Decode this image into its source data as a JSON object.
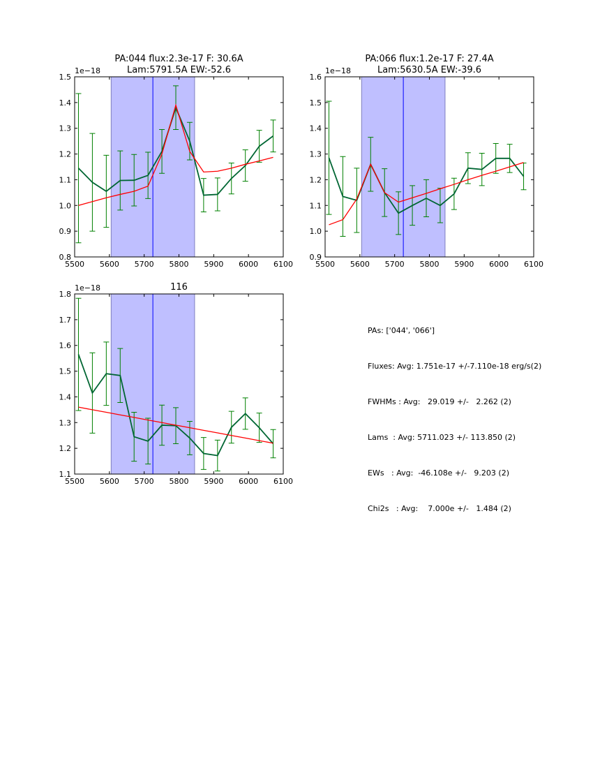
{
  "chart_data": [
    {
      "type": "line",
      "title": [
        "PA:044 flux:2.3e-17 F: 30.6A",
        "Lam:5791.5A EW:-52.6"
      ],
      "offset_label": "1e−18",
      "xlim": [
        5500,
        6100
      ],
      "ylim": [
        0.8,
        1.5
      ],
      "xticks": [
        5500,
        5600,
        5700,
        5800,
        5900,
        6000,
        6100
      ],
      "yticks": [
        0.8,
        0.9,
        1.0,
        1.1,
        1.2,
        1.3,
        1.4,
        1.5
      ],
      "yticklabels": [
        "0.8",
        "0.9",
        "1.0",
        "1.1",
        "1.2",
        "1.3",
        "1.4",
        "1.5"
      ],
      "x": [
        5511,
        5551,
        5591,
        5631,
        5671,
        5711,
        5751,
        5791,
        5831,
        5871,
        5911,
        5951,
        5991,
        6031,
        6071
      ],
      "series": [
        {
          "name": "data",
          "color": "#006633",
          "values": [
            1.145,
            1.09,
            1.055,
            1.097,
            1.098,
            1.117,
            1.21,
            1.38,
            1.25,
            1.04,
            1.043,
            1.105,
            1.155,
            1.23,
            1.27
          ],
          "errors": [
            0.29,
            0.19,
            0.14,
            0.115,
            0.1,
            0.09,
            0.085,
            0.085,
            0.073,
            0.065,
            0.064,
            0.06,
            0.061,
            0.062,
            0.062
          ]
        },
        {
          "name": "fit",
          "color": "#ff0000",
          "values": [
            1.0,
            1.015,
            1.03,
            1.043,
            1.055,
            1.075,
            1.2,
            1.39,
            1.21,
            1.13,
            1.133,
            1.145,
            1.16,
            1.173,
            1.187
          ]
        }
      ],
      "vline": 5725,
      "span": [
        5605,
        5845
      ]
    },
    {
      "type": "line",
      "title": [
        "PA:066 flux:1.2e-17 F: 27.4A",
        "Lam:5630.5A EW:-39.6"
      ],
      "offset_label": "1e−18",
      "xlim": [
        5500,
        6100
      ],
      "ylim": [
        0.9,
        1.6
      ],
      "xticks": [
        5500,
        5600,
        5700,
        5800,
        5900,
        6000,
        6100
      ],
      "yticks": [
        0.9,
        1.0,
        1.1,
        1.2,
        1.3,
        1.4,
        1.5,
        1.6
      ],
      "yticklabels": [
        "0.9",
        "1.0",
        "1.1",
        "1.2",
        "1.3",
        "1.4",
        "1.5",
        "1.6"
      ],
      "x": [
        5511,
        5551,
        5591,
        5631,
        5671,
        5711,
        5751,
        5791,
        5831,
        5871,
        5911,
        5951,
        5991,
        6031,
        6071
      ],
      "series": [
        {
          "name": "data",
          "color": "#006633",
          "values": [
            1.285,
            1.135,
            1.12,
            1.26,
            1.15,
            1.07,
            1.1,
            1.128,
            1.1,
            1.145,
            1.245,
            1.24,
            1.283,
            1.283,
            1.213
          ],
          "errors": [
            0.22,
            0.155,
            0.125,
            0.105,
            0.093,
            0.083,
            0.077,
            0.072,
            0.067,
            0.061,
            0.06,
            0.063,
            0.058,
            0.055,
            0.052
          ]
        },
        {
          "name": "fit",
          "color": "#ff0000",
          "values": [
            1.025,
            1.045,
            1.125,
            1.26,
            1.15,
            1.113,
            1.13,
            1.147,
            1.165,
            1.182,
            1.2,
            1.217,
            1.233,
            1.25,
            1.267
          ]
        }
      ],
      "vline": 5725,
      "span": [
        5605,
        5845
      ]
    },
    {
      "type": "line",
      "title": [
        "116"
      ],
      "offset_label": "1e−18",
      "xlim": [
        5500,
        6100
      ],
      "ylim": [
        1.1,
        1.8
      ],
      "xticks": [
        5500,
        5600,
        5700,
        5800,
        5900,
        6000,
        6100
      ],
      "yticks": [
        1.1,
        1.2,
        1.3,
        1.4,
        1.5,
        1.6,
        1.7,
        1.8
      ],
      "yticklabels": [
        "1.1",
        "1.2",
        "1.3",
        "1.4",
        "1.5",
        "1.6",
        "1.7",
        "1.8"
      ],
      "x": [
        5511,
        5551,
        5591,
        5631,
        5671,
        5711,
        5751,
        5791,
        5831,
        5871,
        5911,
        5951,
        5991,
        6031,
        6071
      ],
      "series": [
        {
          "name": "data",
          "color": "#006633",
          "values": [
            1.565,
            1.415,
            1.49,
            1.483,
            1.245,
            1.228,
            1.29,
            1.288,
            1.24,
            1.18,
            1.172,
            1.282,
            1.335,
            1.28,
            1.218
          ],
          "errors": [
            0.218,
            0.156,
            0.123,
            0.105,
            0.095,
            0.089,
            0.078,
            0.07,
            0.065,
            0.062,
            0.06,
            0.062,
            0.061,
            0.057,
            0.055
          ]
        },
        {
          "name": "fit",
          "color": "#ff0000",
          "values": [
            1.36,
            1.35,
            1.34,
            1.33,
            1.32,
            1.31,
            1.3,
            1.29,
            1.28,
            1.27,
            1.26,
            1.25,
            1.24,
            1.23,
            1.22
          ]
        }
      ],
      "vline": 5725,
      "span": [
        5605,
        5845
      ]
    }
  ],
  "stats": [
    "PAs: ['044', '066']",
    "Fluxes: Avg: 1.751e-17 +/-7.110e-18 erg/s(2)",
    "FWHMs : Avg:   29.019 +/-   2.262 (2)",
    "Lams  : Avg: 5711.023 +/- 113.850 (2)",
    "EWs   : Avg:  -46.108e +/-   9.203 (2)",
    "Chi2s   : Avg:    7.000e +/-   1.484 (2)"
  ],
  "colors": {
    "span": "#bfbfff",
    "vline": "#0000ff",
    "errorbar": "#008000"
  }
}
